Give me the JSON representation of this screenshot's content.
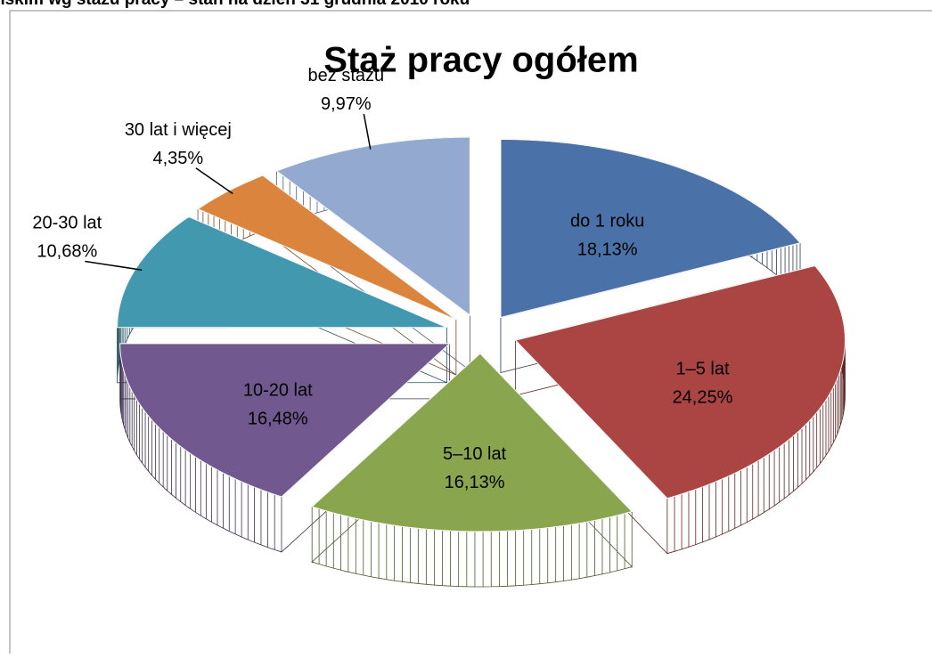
{
  "header": "nskim wg stażu pracy – stan na dzień 31 grudnia 2010 roku",
  "chart_data": {
    "type": "pie",
    "title": "Staż pracy ogółem",
    "categories": [
      "do 1 roku",
      "1–5 lat",
      "5–10 lat",
      "10-20 lat",
      "20-30 lat",
      "30 lat i więcej",
      "bez stażu"
    ],
    "values": [
      18.13,
      24.25,
      16.13,
      16.48,
      10.68,
      4.35,
      9.97
    ],
    "value_labels": [
      "18,13%",
      "24,25%",
      "16,13%",
      "16,48%",
      "10,68%",
      "4,35%",
      "9,97%"
    ],
    "colors": [
      "#4a72a8",
      "#aa4543",
      "#89a54e",
      "#71588f",
      "#4198af",
      "#db843d",
      "#93a9cf"
    ]
  }
}
